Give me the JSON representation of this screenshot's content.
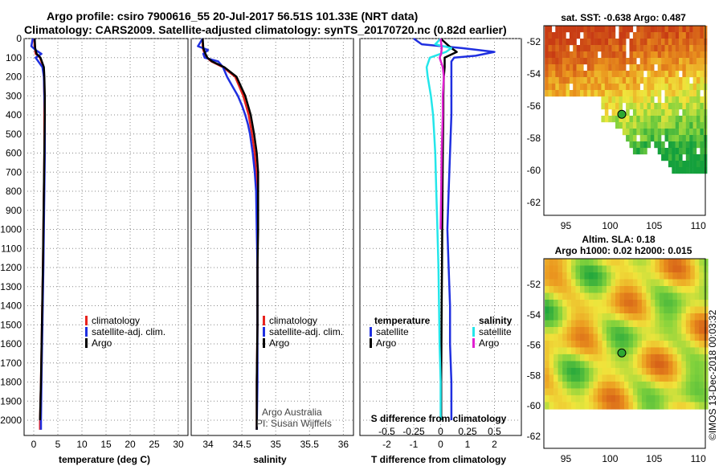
{
  "header": {
    "title_line1": "Argo profile: csiro 7900616_55 20-Jul-2017 56.51S 101.33E (NRT data)",
    "title_line2": "Climatology: CARS2009. Satellite-adjusted climatology: synTS_20170720.nc (0.82d earlier)"
  },
  "colors": {
    "climatology": "#e8231e",
    "satellite": "#1f2fe0",
    "argo": "#000000",
    "sat_salinity": "#24e6ea",
    "argo_salinity": "#e020d0"
  },
  "chart_data": [
    {
      "type": "line",
      "id": "temperature",
      "xlabel": "temperature (deg C)",
      "ylabel": "",
      "xlim": [
        -2,
        32
      ],
      "ylim": [
        2080,
        0
      ],
      "xticks": [
        0,
        5,
        10,
        15,
        20,
        25,
        30
      ],
      "yticks": [
        0,
        100,
        200,
        300,
        400,
        500,
        600,
        700,
        800,
        900,
        1000,
        1100,
        1200,
        1300,
        1400,
        1500,
        1600,
        1700,
        1800,
        1900,
        2000
      ],
      "legend": [
        "climatology",
        "satellite-adj. clim.",
        "Argo"
      ],
      "series": [
        {
          "name": "climatology",
          "depth": [
            0,
            50,
            80,
            100,
            150,
            200,
            300,
            400,
            600,
            800,
            1000,
            1200,
            1500,
            1800,
            2000,
            2050
          ],
          "values": [
            0.1,
            0.2,
            0.4,
            1.3,
            2.0,
            2.1,
            2.2,
            2.2,
            2.2,
            2.1,
            2.0,
            1.9,
            1.7,
            1.5,
            1.3,
            1.3
          ]
        },
        {
          "name": "satellite-adj. clim.",
          "depth": [
            0,
            40,
            60,
            80,
            100,
            150,
            200,
            300,
            400,
            600,
            800,
            1000,
            1200,
            1500,
            1800,
            2000,
            2050
          ],
          "values": [
            -0.2,
            -0.5,
            0.4,
            1.6,
            0.4,
            1.8,
            2.1,
            2.2,
            2.3,
            2.3,
            2.2,
            2.1,
            2.0,
            1.8,
            1.6,
            1.5,
            1.5
          ]
        },
        {
          "name": "Argo",
          "depth": [
            0,
            50,
            80,
            100,
            150,
            200,
            300,
            400,
            600,
            800,
            1000,
            1200,
            1500,
            1800,
            2000
          ],
          "values": [
            0.2,
            0.3,
            0.6,
            1.4,
            2.1,
            2.2,
            2.3,
            2.3,
            2.2,
            2.1,
            2.0,
            1.9,
            1.7,
            1.5,
            1.3
          ]
        }
      ]
    },
    {
      "type": "line",
      "id": "salinity",
      "xlabel": "salinity",
      "ylabel": "",
      "xlim": [
        33.75,
        36.15
      ],
      "ylim": [
        2080,
        0
      ],
      "xticks": [
        34,
        34.5,
        35,
        35.5,
        36
      ],
      "xticklabels": [
        "34",
        "34.5",
        "35",
        "35.5",
        "36"
      ],
      "legend": [
        "climatology",
        "satellite-adj. clim.",
        "Argo"
      ],
      "credit": [
        "Argo Australia",
        "PI: Susan Wijffels"
      ],
      "series": [
        {
          "name": "climatology",
          "depth": [
            0,
            50,
            80,
            100,
            120,
            150,
            200,
            300,
            400,
            500,
            600,
            700,
            800,
            1000,
            1200,
            1500,
            1800,
            2050
          ],
          "values": [
            33.92,
            33.92,
            33.95,
            33.98,
            34.05,
            34.22,
            34.4,
            34.52,
            34.6,
            34.65,
            34.69,
            34.71,
            34.72,
            34.73,
            34.73,
            34.73,
            34.72,
            34.72
          ]
        },
        {
          "name": "satellite-adj. clim.",
          "depth": [
            0,
            40,
            60,
            80,
            100,
            120,
            150,
            200,
            250,
            300,
            350,
            400,
            450,
            500,
            600,
            700,
            800,
            1000,
            1200,
            1500,
            1800,
            2050
          ],
          "values": [
            33.92,
            33.85,
            34.0,
            33.93,
            33.95,
            34.15,
            34.22,
            34.28,
            34.36,
            34.44,
            34.5,
            34.55,
            34.59,
            34.62,
            34.66,
            34.69,
            34.71,
            34.72,
            34.73,
            34.73,
            34.73,
            34.72
          ]
        },
        {
          "name": "Argo",
          "depth": [
            0,
            50,
            80,
            100,
            120,
            150,
            200,
            300,
            400,
            500,
            600,
            700,
            800,
            1000,
            1200,
            1500,
            1800,
            2050
          ],
          "values": [
            33.92,
            33.93,
            33.96,
            33.99,
            34.06,
            34.24,
            34.42,
            34.55,
            34.63,
            34.68,
            34.72,
            34.74,
            34.74,
            34.74,
            34.73,
            34.73,
            34.72,
            34.72
          ]
        }
      ]
    },
    {
      "type": "line",
      "id": "difference",
      "xlabel": "T difference from climatology",
      "ylabel": "",
      "xlim": [
        -3.0,
        3.0
      ],
      "ylim": [
        2080,
        0
      ],
      "xticks": [
        -2,
        -1,
        0,
        1,
        2
      ],
      "top_xticks": [
        -0.5,
        -0.25,
        0,
        0.25,
        0.5
      ],
      "top_xticklabels": [
        "-0.5",
        "-0.25",
        "0",
        "0.25",
        "0.5"
      ],
      "top_xlabel": "S difference from climatology",
      "top_xlim": [
        -0.75,
        0.75
      ],
      "legend_temperature_title": "temperature",
      "legend_salinity_title": "salinity",
      "legend_temperature": [
        "satellite",
        "Argo"
      ],
      "legend_salinity": [
        "satellite",
        "Argo"
      ],
      "series": [
        {
          "name": "T satellite",
          "axis": "T",
          "depth": [
            0,
            30,
            50,
            70,
            90,
            100,
            120,
            150,
            200,
            300,
            400,
            600,
            800,
            1000,
            1200,
            1400,
            1600,
            1800,
            2000
          ],
          "values": [
            -1.0,
            -0.7,
            0.8,
            2.0,
            1.3,
            0.5,
            0.4,
            0.4,
            0.4,
            0.4,
            0.4,
            0.35,
            0.3,
            0.25,
            0.3,
            0.35,
            0.35,
            0.4,
            0.4
          ]
        },
        {
          "name": "T Argo",
          "axis": "T",
          "depth": [
            0,
            50,
            70,
            100,
            150,
            200,
            300,
            400,
            600,
            800,
            1000,
            1200,
            1400,
            1600,
            1800,
            2000
          ],
          "values": [
            0.0,
            0.4,
            0.6,
            0.15,
            0.15,
            0.12,
            0.1,
            0.1,
            0.08,
            0.07,
            0.06,
            0.05,
            0.04,
            0.03,
            0.02,
            0.02
          ]
        },
        {
          "name": "S satellite",
          "axis": "S",
          "depth": [
            0,
            30,
            50,
            70,
            100,
            150,
            200,
            300,
            400,
            500,
            600,
            800,
            1000,
            1200,
            1400,
            1600,
            1800,
            2000
          ],
          "values": [
            0.0,
            -0.05,
            0.1,
            0.05,
            -0.1,
            -0.13,
            -0.12,
            -0.09,
            -0.07,
            -0.06,
            -0.05,
            -0.04,
            -0.03,
            -0.02,
            -0.015,
            -0.01,
            0.0,
            0.0
          ]
        },
        {
          "name": "S Argo",
          "axis": "S",
          "depth": [
            0,
            50,
            80,
            100,
            150,
            200,
            300,
            400,
            500,
            600,
            800,
            1000
          ],
          "values": [
            0.0,
            0.01,
            0.005,
            -0.01,
            0.02,
            0.03,
            0.02,
            0.02,
            0.015,
            0.01,
            0.005,
            0.0
          ]
        }
      ]
    },
    {
      "type": "heatmap",
      "id": "sst_map",
      "title": "sat. SST: -0.638 Argo: 0.487",
      "xlim": [
        92.5,
        110.8
      ],
      "ylim": [
        -62.8,
        -51.0
      ],
      "xticks": [
        95,
        100,
        105,
        110
      ],
      "yticks": [
        -52,
        -54,
        -56,
        -58,
        -60,
        -62
      ],
      "argo_position": [
        101.33,
        -56.51
      ]
    },
    {
      "type": "heatmap",
      "id": "sla_map",
      "title_line1": "Altim. SLA: 0.18",
      "title_line2": "Argo h1000: 0.02 h2000: 0.015",
      "xlim": [
        92.5,
        110.8
      ],
      "ylim": [
        -62.8,
        -50.3
      ],
      "xticks": [
        95,
        100,
        105,
        110
      ],
      "yticks": [
        -52,
        -54,
        -56,
        -58,
        -60,
        -62
      ],
      "argo_position": [
        101.33,
        -56.51
      ]
    }
  ],
  "footer": {
    "imos_stamp": "©IMOS 13-Dec-2018 00:03:32"
  }
}
